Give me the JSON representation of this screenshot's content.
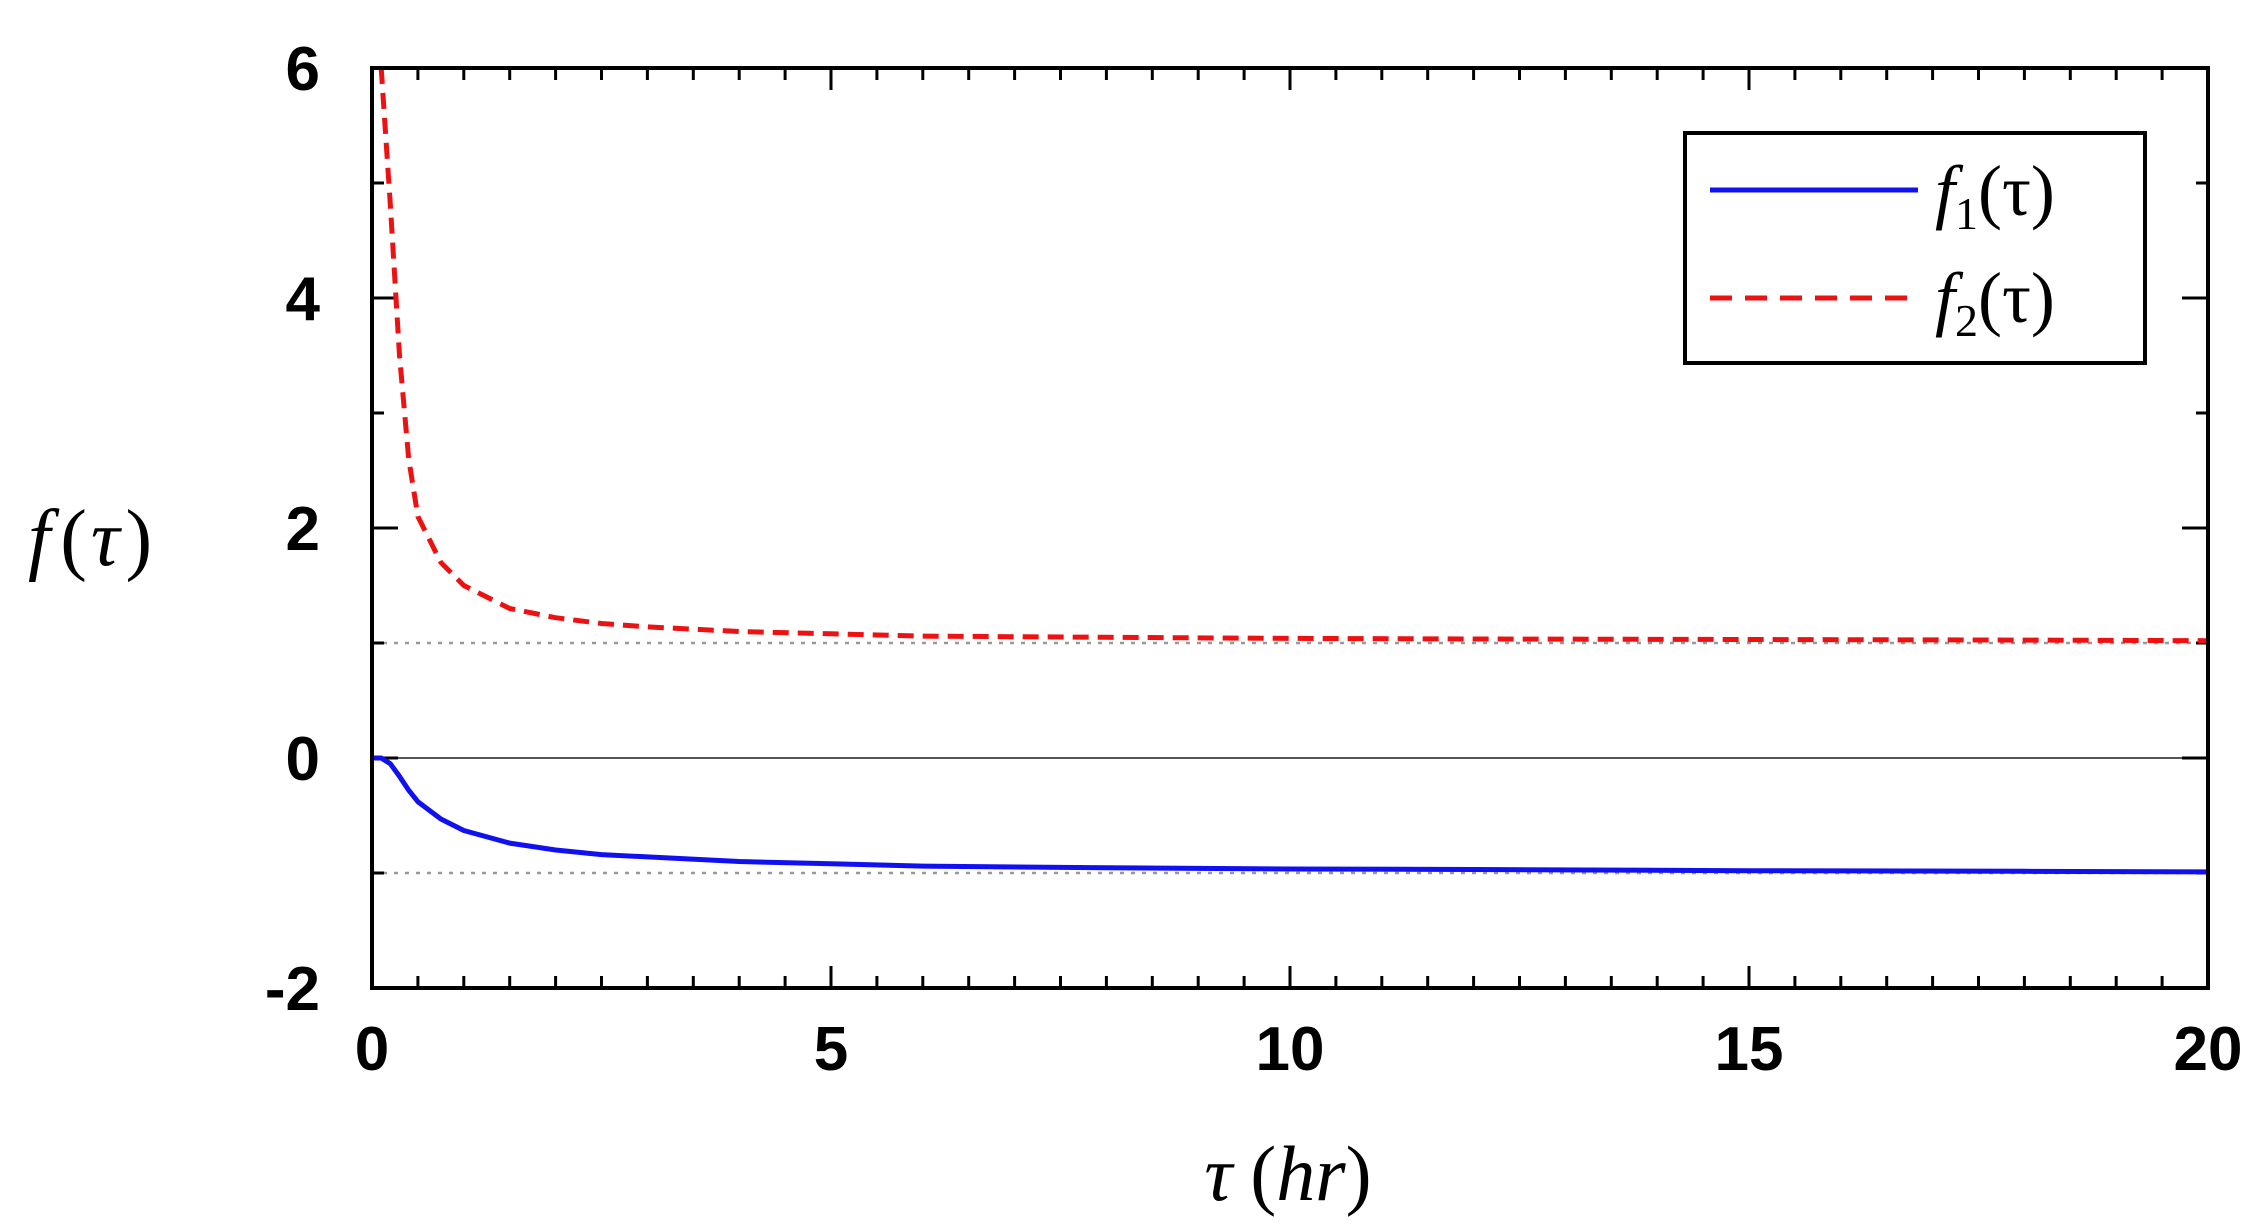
{
  "chart_data": {
    "type": "line",
    "title": "",
    "xlabel": {
      "var": "τ",
      "open": "(",
      "unit": "hr",
      "close": ")"
    },
    "ylabel": {
      "fn": "f",
      "open": "(",
      "var": "τ",
      "close": ")"
    },
    "xlim": [
      0,
      20
    ],
    "ylim": [
      -2,
      6
    ],
    "xticks": [
      0,
      5,
      10,
      15,
      20
    ],
    "xtick_labels": [
      "0",
      "5",
      "10",
      "15",
      "20"
    ],
    "yticks": [
      -2,
      0,
      2,
      4,
      6
    ],
    "ytick_labels": [
      "-2",
      "0",
      "2",
      "4",
      "6"
    ],
    "x_minor_step": 0.5,
    "y_minor_step": 1,
    "grid": false,
    "reference_lines": [
      {
        "name": "zero-line",
        "y": 0,
        "style": "solid",
        "color": "#555555"
      },
      {
        "name": "asymptote-upper",
        "y": 1,
        "style": "dotted",
        "color": "#999999"
      },
      {
        "name": "asymptote-lower",
        "y": -1,
        "style": "dotted",
        "color": "#999999"
      }
    ],
    "x": [
      0,
      0.1,
      0.2,
      0.3,
      0.4,
      0.5,
      0.75,
      1,
      1.5,
      2,
      2.5,
      3,
      4,
      5,
      6,
      8,
      10,
      12,
      15,
      18,
      20
    ],
    "series": [
      {
        "name": "f1(τ)",
        "label_fn": "f",
        "label_sub": "1",
        "label_arg": "(τ)",
        "color": "#1010f0",
        "dash": "solid",
        "values": [
          0,
          0,
          -0.05,
          -0.16,
          -0.28,
          -0.38,
          -0.53,
          -0.63,
          -0.74,
          -0.8,
          -0.84,
          -0.86,
          -0.9,
          -0.92,
          -0.94,
          -0.955,
          -0.965,
          -0.97,
          -0.98,
          -0.985,
          -0.99
        ]
      },
      {
        "name": "f2(τ)",
        "label_fn": "f",
        "label_sub": "2",
        "label_arg": "(τ)",
        "color": "#ee1111",
        "dash": "dashed",
        "values": [
          null,
          6.0,
          4.8,
          3.5,
          2.6,
          2.1,
          1.7,
          1.5,
          1.3,
          1.22,
          1.17,
          1.14,
          1.1,
          1.08,
          1.06,
          1.05,
          1.04,
          1.035,
          1.03,
          1.025,
          1.02
        ]
      }
    ],
    "legend": {
      "position": "top-right",
      "framed": true
    }
  }
}
